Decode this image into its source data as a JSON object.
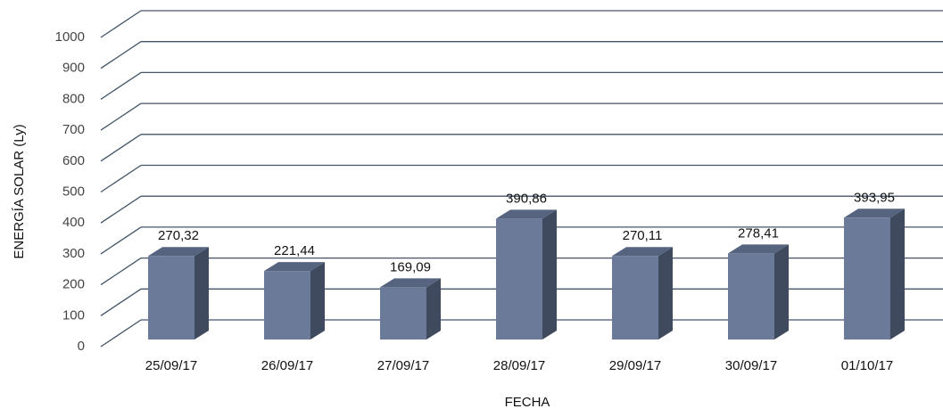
{
  "chart_data": {
    "type": "bar3d",
    "x_label": "FECHA",
    "y_label": "ENERGÍA SOLAR (Ly)",
    "categories": [
      "25/09/17",
      "26/09/17",
      "27/09/17",
      "28/09/17",
      "29/09/17",
      "30/09/17",
      "01/10/17"
    ],
    "values": [
      270.32,
      221.44,
      169.09,
      390.86,
      270.11,
      278.41,
      393.95
    ],
    "value_labels": [
      "270,32",
      "221,44",
      "169,09",
      "390,86",
      "270,11",
      "278,41",
      "393,95"
    ],
    "color": "#6b7a99",
    "ylim": [
      0,
      1000
    ],
    "yticks": [
      0,
      100,
      200,
      300,
      400,
      500,
      600,
      700,
      800,
      900,
      1000
    ],
    "grid": true
  }
}
